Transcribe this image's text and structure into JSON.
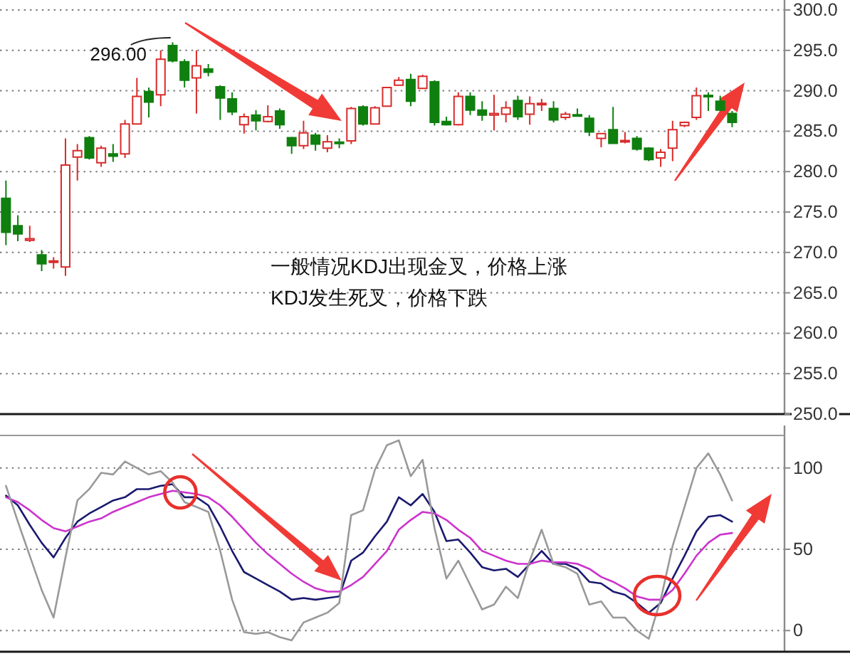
{
  "chart_data": [
    {
      "type": "candlestick",
      "categories": [
        null,
        null,
        null,
        null,
        null,
        null,
        null,
        null,
        null,
        null,
        null,
        null,
        null,
        null,
        null,
        null,
        null,
        null,
        null,
        null,
        null,
        null,
        null,
        null,
        null,
        null,
        null,
        null,
        null,
        null,
        null,
        null,
        null,
        null,
        null,
        null,
        null,
        null,
        null,
        null,
        null,
        null,
        null,
        null,
        null,
        null,
        null,
        null,
        null,
        null,
        null,
        null,
        null,
        null,
        null,
        null,
        null,
        null,
        null,
        null,
        null,
        null
      ],
      "ohlc": [
        [
          276.7,
          278.9,
          270.9,
          272.5
        ],
        [
          273.3,
          274.6,
          271.4,
          272.3
        ],
        [
          271.5,
          273.3,
          271.3,
          271.7
        ],
        [
          269.7,
          270.3,
          267.7,
          268.6
        ],
        [
          268.8,
          269.4,
          268.0,
          268.9
        ],
        [
          268.2,
          284.1,
          267.1,
          280.8
        ],
        [
          281.8,
          283.4,
          278.9,
          282.6
        ],
        [
          284.2,
          284.4,
          281.5,
          281.7
        ],
        [
          281.1,
          283.2,
          280.6,
          282.9
        ],
        [
          282.2,
          283.4,
          281.2,
          281.9
        ],
        [
          282.2,
          286.4,
          281.7,
          285.9
        ],
        [
          285.9,
          291.6,
          285.8,
          289.3
        ],
        [
          289.9,
          290.4,
          286.7,
          288.6
        ],
        [
          289.5,
          295.0,
          288.1,
          293.9
        ],
        [
          295.6,
          296.0,
          293.5,
          293.7
        ],
        [
          293.6,
          293.9,
          290.4,
          291.3
        ],
        [
          291.6,
          295.0,
          287.2,
          293.1
        ],
        [
          292.7,
          293.3,
          291.8,
          292.3
        ],
        [
          290.5,
          290.7,
          286.4,
          289.1
        ],
        [
          289.0,
          289.8,
          287.0,
          287.4
        ],
        [
          285.8,
          287.2,
          284.7,
          286.8
        ],
        [
          287.0,
          287.6,
          285.1,
          286.3
        ],
        [
          286.2,
          288.2,
          286.1,
          286.8
        ],
        [
          287.5,
          287.8,
          285.3,
          285.8
        ],
        [
          284.2,
          284.3,
          282.2,
          283.2
        ],
        [
          283.2,
          286.3,
          282.8,
          284.8
        ],
        [
          284.5,
          284.8,
          282.6,
          283.4
        ],
        [
          282.9,
          284.5,
          282.4,
          283.7
        ],
        [
          283.6,
          284.1,
          282.9,
          283.5
        ],
        [
          283.8,
          288.0,
          283.4,
          287.8
        ],
        [
          288.0,
          288.2,
          285.7,
          285.9
        ],
        [
          285.9,
          288.1,
          285.8,
          287.9
        ],
        [
          288.1,
          290.5,
          288.0,
          290.4
        ],
        [
          290.7,
          291.7,
          290.6,
          291.3
        ],
        [
          291.4,
          292.1,
          288.1,
          288.7
        ],
        [
          290.3,
          292.0,
          290.2,
          291.8
        ],
        [
          291.1,
          291.3,
          285.7,
          286.1
        ],
        [
          286.2,
          286.8,
          285.7,
          285.8
        ],
        [
          285.8,
          289.8,
          285.7,
          289.3
        ],
        [
          289.3,
          289.8,
          287.0,
          287.6
        ],
        [
          287.6,
          288.7,
          286.3,
          287.0
        ],
        [
          287.0,
          289.5,
          285.1,
          287.2
        ],
        [
          287.1,
          288.7,
          286.1,
          287.9
        ],
        [
          288.8,
          289.4,
          286.4,
          286.8
        ],
        [
          287.1,
          289.3,
          285.8,
          288.4
        ],
        [
          288.3,
          289.0,
          287.5,
          288.4
        ],
        [
          287.8,
          288.7,
          286.1,
          286.4
        ],
        [
          286.7,
          287.4,
          286.4,
          287.1
        ],
        [
          287.0,
          287.8,
          286.8,
          286.9
        ],
        [
          286.6,
          287.0,
          284.4,
          284.9
        ],
        [
          284.1,
          284.8,
          283.0,
          284.7
        ],
        [
          285.2,
          288.0,
          283.4,
          283.5
        ],
        [
          283.7,
          284.9,
          283.5,
          283.8
        ],
        [
          284.1,
          284.4,
          282.6,
          282.8
        ],
        [
          282.9,
          283.0,
          281.3,
          281.5
        ],
        [
          281.7,
          282.8,
          280.6,
          282.4
        ],
        [
          282.9,
          286.3,
          281.3,
          285.2
        ],
        [
          285.7,
          286.2,
          285.5,
          286.1
        ],
        [
          286.7,
          290.4,
          286.4,
          289.4
        ],
        [
          289.4,
          289.8,
          287.5,
          289.3
        ],
        [
          288.7,
          289.4,
          287.5,
          287.6
        ],
        [
          287.2,
          287.5,
          285.5,
          286.1
        ]
      ],
      "colors": [
        "#0f7f0f",
        "#0f7f0f",
        "#d92b2b",
        "#0f7f0f",
        "#d92b2b",
        "#d92b2b",
        "#d92b2b",
        "#0f7f0f",
        "#d92b2b",
        "#0f7f0f",
        "#d92b2b",
        "#d92b2b",
        "#0f7f0f",
        "#d92b2b",
        "#0f7f0f",
        "#0f7f0f",
        "#d92b2b",
        "#0f7f0f",
        "#0f7f0f",
        "#0f7f0f",
        "#d92b2b",
        "#0f7f0f",
        "#d92b2b",
        "#0f7f0f",
        "#0f7f0f",
        "#d92b2b",
        "#0f7f0f",
        "#d92b2b",
        "#0f7f0f",
        "#d92b2b",
        "#0f7f0f",
        "#d92b2b",
        "#d92b2b",
        "#d92b2b",
        "#0f7f0f",
        "#d92b2b",
        "#0f7f0f",
        "#0f7f0f",
        "#d92b2b",
        "#0f7f0f",
        "#0f7f0f",
        "#d92b2b",
        "#d92b2b",
        "#0f7f0f",
        "#d92b2b",
        "#d92b2b",
        "#0f7f0f",
        "#d92b2b",
        "#0f7f0f",
        "#0f7f0f",
        "#d92b2b",
        "#0f7f0f",
        "#d92b2b",
        "#0f7f0f",
        "#0f7f0f",
        "#d92b2b",
        "#d92b2b",
        "#d92b2b",
        "#d92b2b",
        "#0f7f0f",
        "#0f7f0f",
        "#0f7f0f"
      ],
      "ylim": [
        250,
        300
      ],
      "yticks": [
        {
          "value": 250,
          "label": "250.0"
        },
        {
          "value": 255,
          "label": "255.0"
        },
        {
          "value": 260,
          "label": "260.0"
        },
        {
          "value": 265,
          "label": "265.0"
        },
        {
          "value": 270,
          "label": "270.0"
        },
        {
          "value": 275,
          "label": "275.0"
        },
        {
          "value": 280,
          "label": "280.0"
        },
        {
          "value": 285,
          "label": "285.0"
        },
        {
          "value": 290,
          "label": "290.0"
        },
        {
          "value": 295,
          "label": "295.0"
        },
        {
          "value": 300,
          "label": "300.0"
        }
      ],
      "grid": "y",
      "annotations": [
        "296.00",
        "一般情况KDJ出现金叉，价格上涨",
        "KDJ发生死叉，价格下跌"
      ]
    },
    {
      "type": "line",
      "categories": [
        null,
        null,
        null,
        null,
        null,
        null,
        null,
        null,
        null,
        null,
        null,
        null,
        null,
        null,
        null,
        null,
        null,
        null,
        null,
        null,
        null,
        null,
        null,
        null,
        null,
        null,
        null,
        null,
        null,
        null,
        null,
        null,
        null,
        null,
        null,
        null,
        null,
        null,
        null,
        null,
        null,
        null,
        null,
        null,
        null,
        null,
        null,
        null,
        null,
        null,
        null,
        null,
        null,
        null,
        null,
        null,
        null,
        null,
        null,
        null,
        null,
        null
      ],
      "series": [
        {
          "color": "#1a1a70",
          "values": [
            83,
            77,
            65,
            54,
            45,
            57,
            67,
            72,
            76,
            80,
            82,
            87,
            87,
            89,
            90,
            82,
            82,
            77,
            64,
            49,
            36,
            32,
            28,
            24,
            19,
            20,
            19,
            20,
            21,
            43,
            48,
            58,
            67,
            82,
            77,
            84,
            73,
            55,
            56,
            48,
            39,
            37,
            38,
            33,
            41,
            49,
            41,
            41,
            38,
            30,
            29,
            24,
            22,
            17,
            11,
            17,
            32,
            46,
            61,
            70,
            71,
            67
          ]
        },
        {
          "color": "#cc33cc",
          "values": [
            82,
            79,
            74,
            68,
            63,
            61,
            64,
            67,
            69,
            73,
            76,
            79,
            82,
            84,
            86,
            85,
            84,
            82,
            77,
            70,
            62,
            54,
            47,
            41,
            35,
            30,
            26,
            24,
            24,
            28,
            33,
            41,
            49,
            62,
            68,
            73,
            72,
            68,
            62,
            57,
            49,
            46,
            43,
            41,
            41,
            43,
            42,
            42,
            41,
            38,
            33,
            30,
            26,
            21,
            19,
            19,
            25,
            35,
            46,
            54,
            59,
            60
          ]
        },
        {
          "color": "#999999",
          "values": [
            89,
            67,
            46,
            25,
            8,
            45,
            80,
            87,
            97,
            96,
            104,
            100,
            96,
            98,
            91,
            79,
            76,
            73,
            49,
            19,
            -1,
            -2,
            -1,
            -4,
            -6,
            5,
            8,
            11,
            17,
            71,
            74,
            99,
            114,
            117,
            95,
            105,
            63,
            32,
            43,
            28,
            13,
            16,
            27,
            20,
            43,
            62,
            41,
            39,
            35,
            16,
            18,
            8,
            8,
            0,
            -5,
            19,
            52,
            76,
            100,
            109,
            96,
            80
          ]
        }
      ],
      "ylim": [
        -13,
        120
      ],
      "yticks": [
        0,
        50,
        100
      ],
      "grid": "y"
    }
  ]
}
